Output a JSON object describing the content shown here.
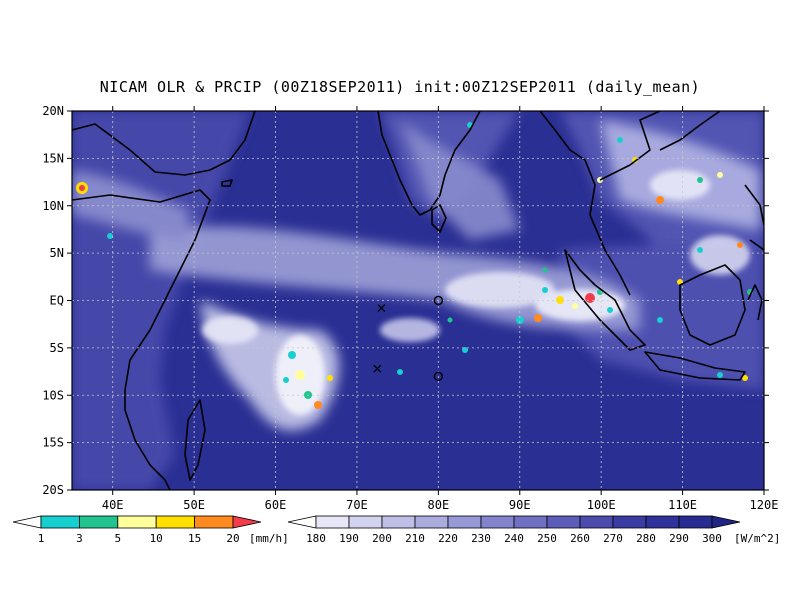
{
  "title": "NICAM OLR & PRCIP (00Z18SEP2011) init:00Z12SEP2011 (daily_mean)",
  "map": {
    "lon_range": [
      35,
      120
    ],
    "lat_range": [
      -20,
      20
    ],
    "lon_ticks": [
      {
        "value": 40,
        "label": "40E"
      },
      {
        "value": 50,
        "label": "50E"
      },
      {
        "value": 60,
        "label": "60E"
      },
      {
        "value": 70,
        "label": "70E"
      },
      {
        "value": 80,
        "label": "80E"
      },
      {
        "value": 90,
        "label": "90E"
      },
      {
        "value": 100,
        "label": "100E"
      },
      {
        "value": 110,
        "label": "110E"
      },
      {
        "value": 120,
        "label": "120E"
      }
    ],
    "lat_ticks": [
      {
        "value": 20,
        "label": "20N"
      },
      {
        "value": 15,
        "label": "15N"
      },
      {
        "value": 10,
        "label": "10N"
      },
      {
        "value": 5,
        "label": "5N"
      },
      {
        "value": 0,
        "label": "EQ"
      },
      {
        "value": -5,
        "label": "5S"
      },
      {
        "value": -10,
        "label": "10S"
      },
      {
        "value": -15,
        "label": "15S"
      },
      {
        "value": -20,
        "label": "20S"
      }
    ],
    "background_color": "#2a2f93",
    "markers": [
      {
        "symbol": "x",
        "lon": 73,
        "lat": -0.8
      },
      {
        "symbol": "x",
        "lon": 72.5,
        "lat": -7.2
      },
      {
        "symbol": "o",
        "lon": 80,
        "lat": 0
      },
      {
        "symbol": "o",
        "lon": 80,
        "lat": -8
      }
    ]
  },
  "precip_colorbar": {
    "labels": [
      "1",
      "3",
      "5",
      "10",
      "15",
      "20"
    ],
    "unit": "[mm/h]",
    "colors": [
      "#ffffff",
      "#18cfcf",
      "#21c48f",
      "#ffff9c",
      "#ffe000",
      "#ff8a1f",
      "#f23c4c"
    ]
  },
  "olr_colorbar": {
    "labels": [
      "180",
      "190",
      "200",
      "210",
      "220",
      "230",
      "240",
      "250",
      "260",
      "270",
      "280",
      "290",
      "300"
    ],
    "unit": "[W/m^2]",
    "colors": [
      "#ffffff",
      "#e6e6f6",
      "#d2d3ee",
      "#bebfe6",
      "#aaacde",
      "#9798d6",
      "#8384cd",
      "#6f70c2",
      "#5c5db8",
      "#4a4bad",
      "#3a3ca3",
      "#2f329a",
      "#272b92",
      "#202485"
    ]
  }
}
